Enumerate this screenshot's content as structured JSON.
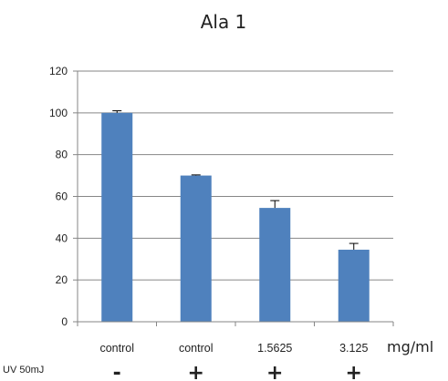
{
  "chart_data": {
    "type": "bar",
    "title": "Ala 1",
    "categories": [
      "control",
      "control",
      "1.5625",
      "3.125"
    ],
    "values": [
      100,
      70,
      54.5,
      34.5
    ],
    "errors": [
      1,
      0.3,
      3.5,
      3
    ],
    "unit": "mg/ml",
    "ylim": [
      0,
      120
    ],
    "yticks": [
      "0",
      "20",
      "40",
      "60",
      "80",
      "100",
      "120"
    ],
    "grid": true,
    "bar_color": "#4f81bd",
    "row_label": "UV 50mJ",
    "row_signs": [
      "-",
      "+",
      "+",
      "+"
    ]
  }
}
